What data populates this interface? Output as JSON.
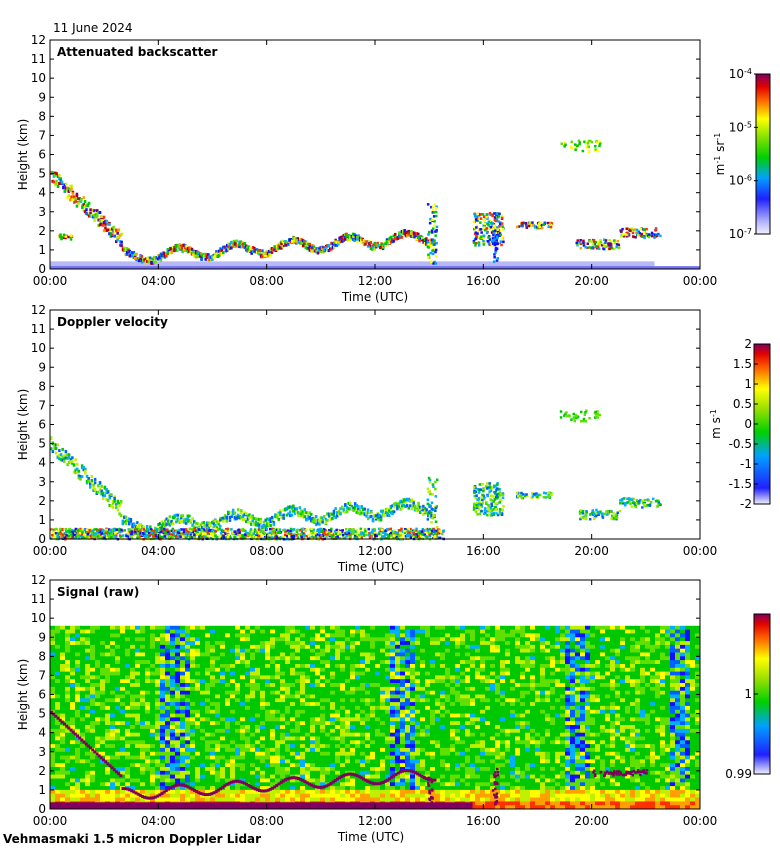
{
  "date_label": "11 June 2024",
  "footer": "Vehmasmaki 1.5 micron Doppler Lidar",
  "chart_data": [
    {
      "type": "heatmap",
      "title": "Attenuated backscatter",
      "xlabel": "Time (UTC)",
      "ylabel": "Height (km)",
      "xlim": [
        0,
        24
      ],
      "ylim": [
        0,
        12
      ],
      "x_tick_labels": [
        "00:00",
        "04:00",
        "08:00",
        "12:00",
        "16:00",
        "20:00",
        "00:00"
      ],
      "y_tick_labels": [
        "0",
        "1",
        "2",
        "3",
        "4",
        "5",
        "6",
        "7",
        "8",
        "9",
        "10",
        "11",
        "12"
      ],
      "colorbar": {
        "scale": "log",
        "range": [
          1e-07,
          0.0001
        ],
        "tick_labels": [
          {
            "mantissa": "10",
            "exponent": "-4"
          },
          {
            "mantissa": "10",
            "exponent": "-5"
          },
          {
            "mantissa": "10",
            "exponent": "-6"
          },
          {
            "mantissa": "10",
            "exponent": "-7"
          }
        ],
        "unit_parts": [
          "m",
          "-1",
          " sr",
          "-1"
        ]
      },
      "features": [
        {
          "name": "boundary layer",
          "t_start": 0,
          "t_end": 24,
          "top_km": 0.4
        },
        {
          "name": "descending cloud",
          "t_start": 0,
          "t_end": 2.5,
          "top_km": 5.5,
          "bottom_km": 1.5
        },
        {
          "name": "cloud layer",
          "t_start": 2.5,
          "t_end": 14.2,
          "height_km": 1.6
        },
        {
          "name": "convective plume",
          "t_start": 13.9,
          "t_end": 14.2,
          "top_km": 3.5
        },
        {
          "name": "convective plume",
          "t_start": 15.6,
          "t_end": 16.7,
          "top_km": 3.0
        },
        {
          "name": "elevated cloud",
          "t_start": 18.8,
          "t_end": 20.3,
          "height_km": 6.5
        },
        {
          "name": "cloud patches",
          "t_start": 17.2,
          "t_end": 24,
          "height_km": 1.9
        }
      ]
    },
    {
      "type": "heatmap",
      "title": "Doppler velocity",
      "xlabel": "Time (UTC)",
      "ylabel": "Height (km)",
      "xlim": [
        0,
        24
      ],
      "ylim": [
        0,
        12
      ],
      "x_tick_labels": [
        "00:00",
        "04:00",
        "08:00",
        "12:00",
        "16:00",
        "20:00",
        "00:00"
      ],
      "y_tick_labels": [
        "0",
        "1",
        "2",
        "3",
        "4",
        "5",
        "6",
        "7",
        "8",
        "9",
        "10",
        "11",
        "12"
      ],
      "colorbar": {
        "scale": "linear",
        "range": [
          -2,
          2
        ],
        "tick_labels": [
          "2",
          "1.5",
          "1",
          "0.5",
          "0",
          "-0.5",
          "-1",
          "-1.5",
          "-2"
        ],
        "unit_parts": [
          "m",
          " s",
          "-1"
        ]
      }
    },
    {
      "type": "heatmap",
      "title": "Signal (raw)",
      "xlabel": "Time (UTC)",
      "ylabel": "Height (km)",
      "xlim": [
        0,
        24
      ],
      "ylim": [
        0,
        12
      ],
      "data_top_km": 9.6,
      "x_tick_labels": [
        "00:00",
        "04:00",
        "08:00",
        "12:00",
        "16:00",
        "20:00",
        "00:00"
      ],
      "y_tick_labels": [
        "0",
        "1",
        "2",
        "3",
        "4",
        "5",
        "6",
        "7",
        "8",
        "9",
        "10",
        "11",
        "12"
      ],
      "colorbar": {
        "scale": "linear",
        "range": [
          0.99,
          1.01
        ],
        "tick_labels": [
          "1",
          "0.99"
        ]
      }
    }
  ]
}
